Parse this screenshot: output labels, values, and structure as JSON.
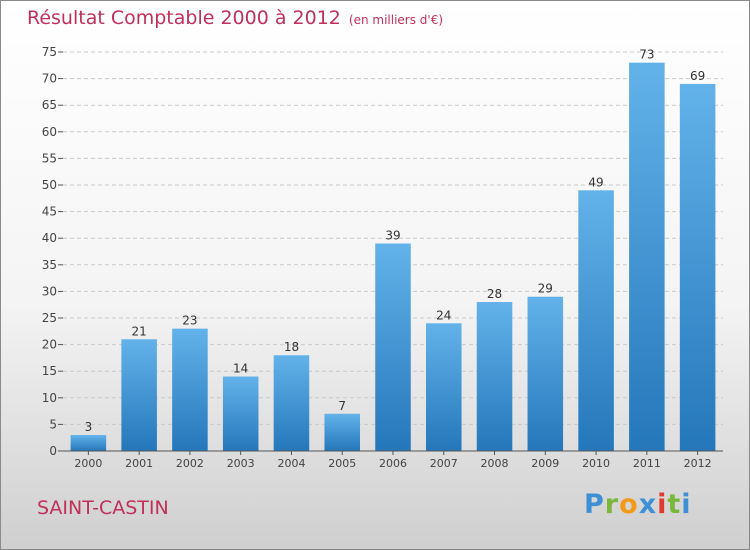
{
  "title": "Résultat Comptable 2000 à 2012",
  "unit_note": "(en milliers d'€)",
  "place": "SAINT-CASTIN",
  "logo": {
    "letters": [
      "P",
      "r",
      "o",
      "x",
      "i",
      "t",
      "i"
    ]
  },
  "colors": {
    "title": "#c0305a",
    "bar_top": "#63b2ea",
    "bar_bottom": "#2477ba",
    "grid": "#c9c9c9"
  },
  "chart_data": {
    "type": "bar",
    "categories": [
      "2000",
      "2001",
      "2002",
      "2003",
      "2004",
      "2005",
      "2006",
      "2007",
      "2008",
      "2009",
      "2010",
      "2011",
      "2012"
    ],
    "values": [
      3,
      21,
      23,
      14,
      18,
      7,
      39,
      24,
      28,
      29,
      49,
      73,
      69
    ],
    "title": "Résultat Comptable 2000 à 2012",
    "xlabel": "",
    "ylabel": "",
    "ylim": [
      0,
      75
    ],
    "yticks": [
      0,
      5,
      10,
      15,
      20,
      25,
      30,
      35,
      40,
      45,
      50,
      55,
      60,
      65,
      70,
      75
    ],
    "grid": true,
    "legend": "none"
  }
}
